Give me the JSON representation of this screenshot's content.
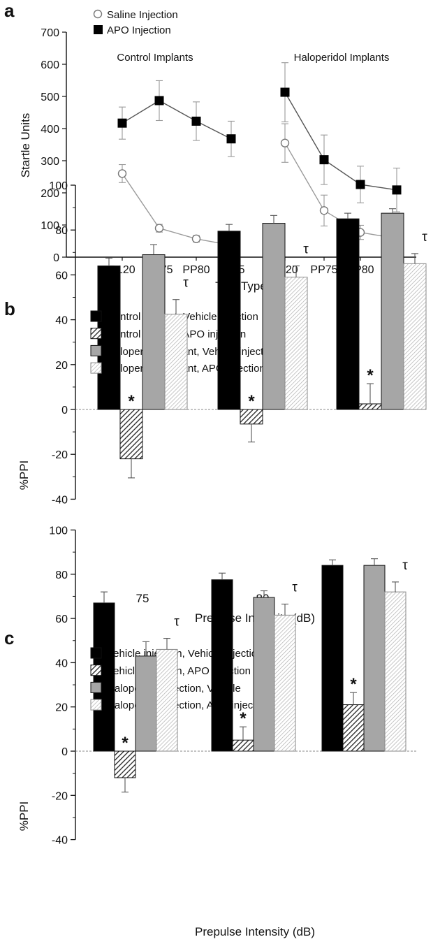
{
  "chart_data": [
    {
      "panel": "a",
      "type": "line",
      "ylabel": "Startle Units",
      "xlabel": "Trial Type",
      "ylim": [
        0,
        700
      ],
      "yticks": [
        0,
        100,
        200,
        300,
        400,
        500,
        600,
        700
      ],
      "groups": [
        {
          "label": "Control Implants",
          "categories": [
            "P120",
            "PP75",
            "PP80",
            "PP85"
          ]
        },
        {
          "label": "Haloperidol Implants",
          "categories": [
            "P120",
            "PP75",
            "PP80",
            "PP85"
          ]
        }
      ],
      "series": [
        {
          "name": "Saline Injection",
          "marker": "open-circle",
          "values": [
            [
              260,
              90,
              57,
              37
            ],
            [
              355,
              145,
              77,
              58
            ]
          ],
          "errors": [
            [
              28,
              12,
              10,
              10
            ],
            [
              60,
              48,
              22,
              15
            ]
          ]
        },
        {
          "name": "APO Injection",
          "marker": "filled-square",
          "values": [
            [
              417,
              487,
              423,
              368
            ],
            [
              513,
              303,
              226,
              209
            ]
          ],
          "errors": [
            [
              50,
              62,
              60,
              55
            ],
            [
              92,
              77,
              57,
              68
            ]
          ]
        }
      ],
      "legend": "top-left",
      "grid": false
    },
    {
      "panel": "b",
      "type": "bar",
      "ylabel": "%PPI",
      "xlabel": "Prepulse Intensity (dB)",
      "ylim": [
        -40,
        100
      ],
      "yticks": [
        -40,
        -20,
        0,
        20,
        40,
        60,
        80,
        100
      ],
      "categories": [
        "75",
        "80",
        "85"
      ],
      "series": [
        {
          "name": "Control implant, Vehicle injection",
          "pattern": "solid-black",
          "values": [
            64,
            79.5,
            85
          ],
          "errors": [
            3.5,
            3,
            2.5
          ]
        },
        {
          "name": "Control implant, APO injection",
          "pattern": "dark-hatch",
          "values": [
            -22,
            -6.5,
            2.5
          ],
          "errors": [
            8.5,
            8,
            9
          ]
        },
        {
          "name": "Haloperidol implant, Vehicle injection",
          "pattern": "solid-gray",
          "values": [
            69,
            83,
            87.5
          ],
          "errors": [
            4.5,
            3.5,
            2
          ]
        },
        {
          "name": "Haloperidol implant, APO injection",
          "pattern": "light-hatch",
          "values": [
            42.5,
            59,
            65
          ],
          "errors": [
            6.5,
            5,
            4.5
          ]
        }
      ],
      "annotations": [
        {
          "text": "*",
          "category": "75",
          "series": 1
        },
        {
          "text": "*",
          "category": "80",
          "series": 1
        },
        {
          "text": "*",
          "category": "85",
          "series": 1
        },
        {
          "text": "τ",
          "category": "75",
          "series": 3
        },
        {
          "text": "τ",
          "category": "80",
          "series": 3
        },
        {
          "text": "τ",
          "category": "85",
          "series": 3
        }
      ],
      "legend": "top-left",
      "grid": false
    },
    {
      "panel": "c",
      "type": "bar",
      "ylabel": "%PPI",
      "xlabel": "Prepulse Intensity (dB)",
      "ylim": [
        -40,
        100
      ],
      "yticks": [
        -40,
        -20,
        0,
        20,
        40,
        60,
        80,
        100
      ],
      "categories": [
        "75",
        "80",
        "85"
      ],
      "show_category_labels": false,
      "series": [
        {
          "name": "Vehicle injection, Vehicle injection",
          "pattern": "solid-black",
          "values": [
            67,
            77.5,
            84
          ],
          "errors": [
            5,
            3,
            2.5
          ]
        },
        {
          "name": "Vehicle injection, APO injection",
          "pattern": "dark-hatch",
          "values": [
            -12,
            5,
            21
          ],
          "errors": [
            6.5,
            6,
            5.5
          ]
        },
        {
          "name": "Haloperidol injection, Vehicle",
          "pattern": "solid-gray",
          "values": [
            43,
            69.5,
            84
          ],
          "errors": [
            6.5,
            3,
            3
          ]
        },
        {
          "name": "Haloperidol injection, APO injection",
          "pattern": "light-hatch",
          "values": [
            46,
            61.5,
            72
          ],
          "errors": [
            5,
            5,
            4.5
          ]
        }
      ],
      "annotations": [
        {
          "text": "*",
          "category": "75",
          "series": 1
        },
        {
          "text": "*",
          "category": "80",
          "series": 1
        },
        {
          "text": "*",
          "category": "85",
          "series": 1
        },
        {
          "text": "τ",
          "category": "75",
          "series": 3
        },
        {
          "text": "τ",
          "category": "80",
          "series": 3
        },
        {
          "text": "τ",
          "category": "85",
          "series": 3
        }
      ],
      "legend": "top-left",
      "grid": false
    }
  ],
  "panels": {
    "a": {
      "letter": "a"
    },
    "b": {
      "letter": "b"
    },
    "c": {
      "letter": "c"
    }
  }
}
